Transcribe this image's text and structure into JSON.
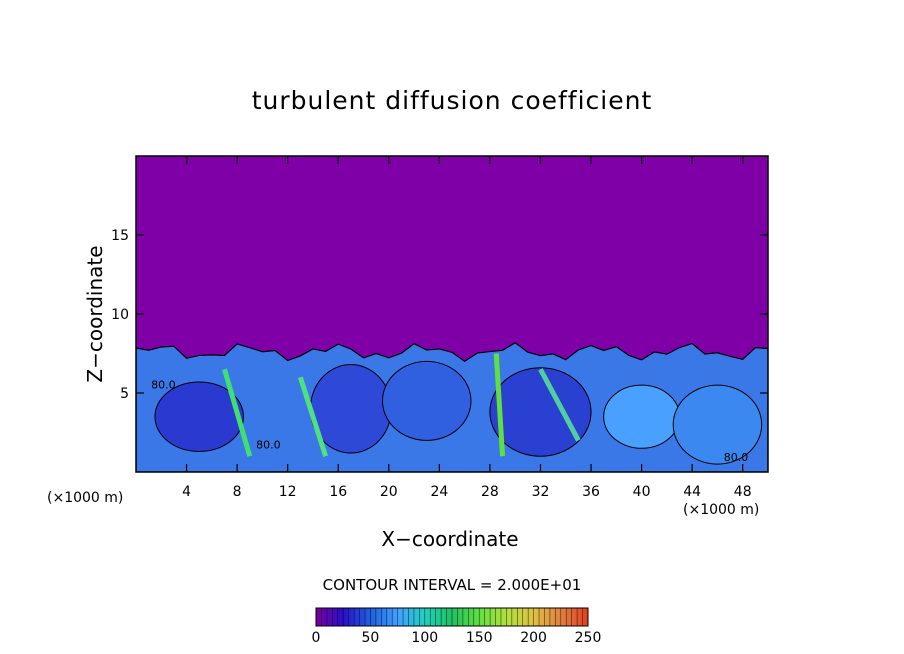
{
  "chart_data": {
    "type": "heatmap",
    "title": "turbulent diffusion coefficient",
    "xlabel": "X−coordinate",
    "ylabel": "Z−coordinate",
    "x_unit_label_left": "(×1000 m)",
    "x_unit_label_right": "(×1000 m)",
    "xlim": [
      0,
      50
    ],
    "ylim": [
      0,
      20
    ],
    "xticks": [
      4,
      8,
      12,
      16,
      20,
      24,
      28,
      32,
      36,
      40,
      44,
      48
    ],
    "yticks": [
      5,
      10,
      15
    ],
    "contour_interval_label": "CONTOUR INTERVAL = 2.000E+01",
    "contour_labels": [
      "80.0",
      "80.0",
      "80.0"
    ],
    "colorbar": {
      "range": [
        0,
        250
      ],
      "ticks": [
        0,
        50,
        100,
        150,
        200,
        250
      ],
      "colors": [
        "#7a00a0",
        "#2a10c8",
        "#2060e0",
        "#40a0ff",
        "#20d0c0",
        "#20c060",
        "#60e040",
        "#b0e040",
        "#e0c040",
        "#e08040",
        "#e04020"
      ]
    },
    "background_color": "#8000a8",
    "boundary_layer_top_z": 8
  }
}
